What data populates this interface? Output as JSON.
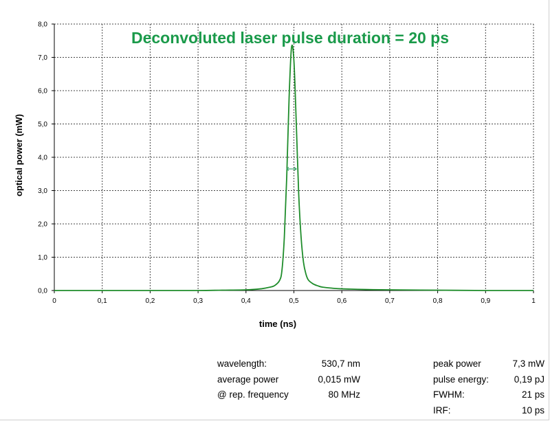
{
  "chart_data": {
    "type": "line",
    "title": "Deconvoluted laser pulse duration = 20 ps",
    "xlabel": "time (ns)",
    "ylabel": "optical power (mW)",
    "xlim": [
      0,
      1
    ],
    "ylim": [
      0,
      8
    ],
    "x_ticks": [
      "0",
      "0,1",
      "0,2",
      "0,3",
      "0,4",
      "0,5",
      "0,6",
      "0,7",
      "0,8",
      "0,9",
      "1"
    ],
    "y_ticks": [
      "0,0",
      "1,0",
      "2,0",
      "3,0",
      "4,0",
      "5,0",
      "6,0",
      "7,0",
      "8,0"
    ],
    "grid": true,
    "series_color": "#1e8c2a",
    "title_color": "#1a9a4a",
    "series": [
      {
        "x": [
          0,
          0.1,
          0.2,
          0.3,
          0.35,
          0.4,
          0.43,
          0.45,
          0.46,
          0.47,
          0.475,
          0.48,
          0.485,
          0.49,
          0.495,
          0.5,
          0.505,
          0.51,
          0.515,
          0.52,
          0.525,
          0.53,
          0.54,
          0.55,
          0.56,
          0.58,
          0.6,
          0.65,
          0.7,
          0.8,
          0.9,
          1.0
        ],
        "y": [
          0.0,
          0.0,
          0.0,
          0.0,
          0.01,
          0.02,
          0.05,
          0.1,
          0.15,
          0.3,
          0.6,
          1.6,
          3.4,
          5.8,
          7.3,
          6.9,
          5.0,
          2.9,
          1.6,
          0.85,
          0.5,
          0.32,
          0.2,
          0.14,
          0.1,
          0.07,
          0.05,
          0.03,
          0.02,
          0.01,
          0.0,
          0.0
        ]
      }
    ],
    "fwhm_marker": {
      "x_start": 0.485,
      "x_end": 0.505,
      "y": 3.65
    }
  },
  "info_left": [
    {
      "label": "wavelength:",
      "value": "530,7 nm"
    },
    {
      "label": "average power",
      "value": "0,015 mW"
    },
    {
      "label": "@ rep. frequency",
      "value": "80 MHz"
    }
  ],
  "info_right": [
    {
      "label": "peak power",
      "value": "7,3 mW"
    },
    {
      "label": "pulse energy:",
      "value": "0,19 pJ"
    },
    {
      "label": "FWHM:",
      "value": "21 ps"
    },
    {
      "label": "IRF:",
      "value": "10 ps"
    }
  ]
}
